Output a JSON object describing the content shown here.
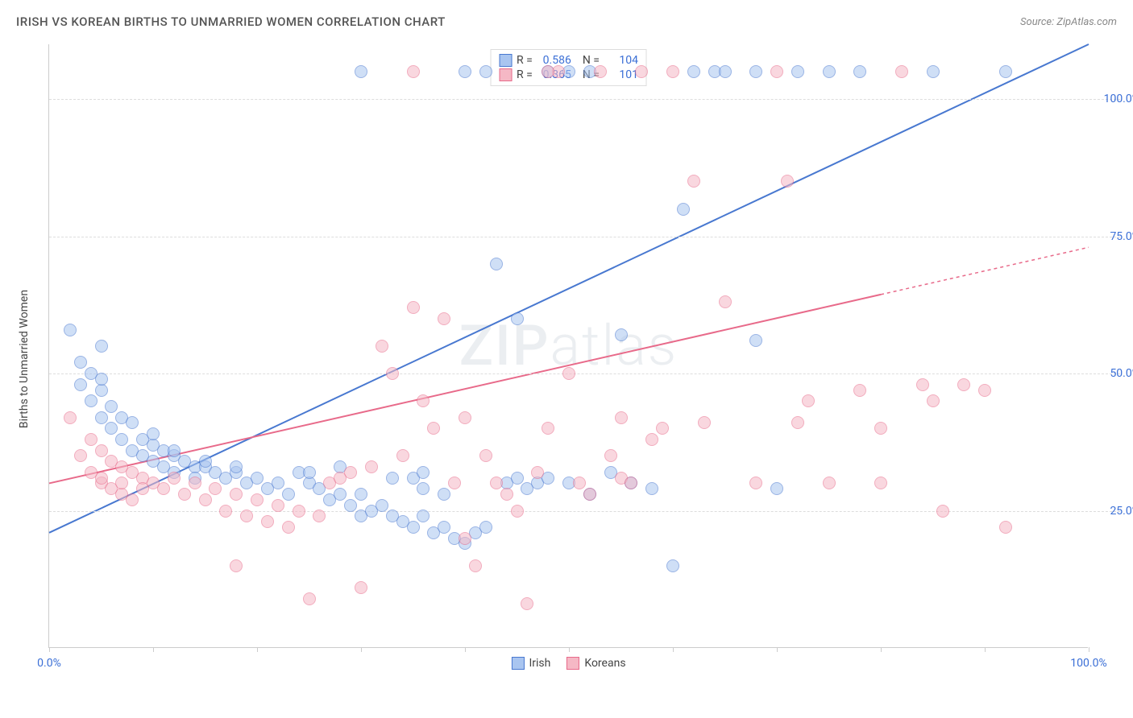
{
  "title": "IRISH VS KOREAN BIRTHS TO UNMARRIED WOMEN CORRELATION CHART",
  "source": "Source: ZipAtlas.com",
  "y_axis_label": "Births to Unmarried Women",
  "watermark": "ZIPatlas",
  "chart": {
    "type": "scatter",
    "xlim": [
      0,
      100
    ],
    "ylim": [
      0,
      110
    ],
    "x_tick_positions": [
      0,
      10,
      20,
      30,
      40,
      50,
      60,
      70,
      80,
      90,
      100
    ],
    "x_tick_labels": {
      "0": "0.0%",
      "100": "100.0%"
    },
    "y_gridlines": [
      25,
      50,
      75,
      100
    ],
    "y_tick_labels": {
      "25": "25.0%",
      "50": "50.0%",
      "75": "75.0%",
      "100": "100.0%"
    },
    "background_color": "#ffffff",
    "grid_color": "#dddddd",
    "axis_color": "#cccccc",
    "label_color": "#3b6fd6",
    "point_radius": 8,
    "point_opacity": 0.55
  },
  "series": [
    {
      "name": "Irish",
      "color_fill": "#a9c5f0",
      "color_stroke": "#4878d0",
      "R": "0.586",
      "N": "104",
      "trend": {
        "x1": 0,
        "y1": 21,
        "x2": 100,
        "y2": 110,
        "solid_until_x": 100
      },
      "points": [
        [
          2,
          58
        ],
        [
          3,
          52
        ],
        [
          3,
          48
        ],
        [
          4,
          50
        ],
        [
          4,
          45
        ],
        [
          5,
          47
        ],
        [
          5,
          42
        ],
        [
          5,
          49
        ],
        [
          6,
          44
        ],
        [
          6,
          40
        ],
        [
          7,
          42
        ],
        [
          7,
          38
        ],
        [
          8,
          41
        ],
        [
          8,
          36
        ],
        [
          9,
          38
        ],
        [
          9,
          35
        ],
        [
          10,
          37
        ],
        [
          10,
          34
        ],
        [
          11,
          36
        ],
        [
          11,
          33
        ],
        [
          12,
          35
        ],
        [
          12,
          32
        ],
        [
          13,
          34
        ],
        [
          14,
          33
        ],
        [
          14,
          31
        ],
        [
          15,
          33
        ],
        [
          16,
          32
        ],
        [
          17,
          31
        ],
        [
          18,
          32
        ],
        [
          19,
          30
        ],
        [
          20,
          31
        ],
        [
          21,
          29
        ],
        [
          22,
          30
        ],
        [
          23,
          28
        ],
        [
          24,
          32
        ],
        [
          25,
          30
        ],
        [
          26,
          29
        ],
        [
          27,
          27
        ],
        [
          28,
          28
        ],
        [
          29,
          26
        ],
        [
          30,
          28
        ],
        [
          30,
          24
        ],
        [
          31,
          25
        ],
        [
          32,
          26
        ],
        [
          33,
          24
        ],
        [
          34,
          23
        ],
        [
          35,
          22
        ],
        [
          36,
          24
        ],
        [
          37,
          21
        ],
        [
          38,
          22
        ],
        [
          39,
          20
        ],
        [
          40,
          19
        ],
        [
          41,
          21
        ],
        [
          42,
          22
        ],
        [
          43,
          70
        ],
        [
          44,
          30
        ],
        [
          45,
          31
        ],
        [
          46,
          29
        ],
        [
          47,
          30
        ],
        [
          48,
          105
        ],
        [
          50,
          105
        ],
        [
          52,
          105
        ],
        [
          54,
          32
        ],
        [
          55,
          57
        ],
        [
          56,
          30
        ],
        [
          58,
          29
        ],
        [
          60,
          15
        ],
        [
          61,
          80
        ],
        [
          62,
          105
        ],
        [
          64,
          105
        ],
        [
          65,
          105
        ],
        [
          68,
          105
        ],
        [
          70,
          29
        ],
        [
          72,
          105
        ],
        [
          75,
          105
        ],
        [
          78,
          105
        ],
        [
          85,
          105
        ],
        [
          92,
          105
        ],
        [
          40,
          105
        ],
        [
          42,
          105
        ],
        [
          68,
          56
        ],
        [
          50,
          30
        ],
        [
          52,
          28
        ],
        [
          35,
          31
        ],
        [
          36,
          32
        ],
        [
          48,
          31
        ],
        [
          10,
          39
        ],
        [
          12,
          36
        ],
        [
          15,
          34
        ],
        [
          18,
          33
        ],
        [
          25,
          32
        ],
        [
          28,
          33
        ],
        [
          33,
          31
        ],
        [
          36,
          29
        ],
        [
          38,
          28
        ],
        [
          45,
          60
        ],
        [
          5,
          55
        ],
        [
          30,
          105
        ]
      ]
    },
    {
      "name": "Koreans",
      "color_fill": "#f5b8c5",
      "color_stroke": "#e86a8a",
      "R": "0.365",
      "N": "101",
      "trend": {
        "x1": 0,
        "y1": 30,
        "x2": 100,
        "y2": 73,
        "solid_until_x": 80
      },
      "points": [
        [
          2,
          42
        ],
        [
          3,
          35
        ],
        [
          4,
          38
        ],
        [
          4,
          32
        ],
        [
          5,
          36
        ],
        [
          5,
          30
        ],
        [
          6,
          34
        ],
        [
          6,
          29
        ],
        [
          7,
          33
        ],
        [
          7,
          28
        ],
        [
          8,
          32
        ],
        [
          8,
          27
        ],
        [
          9,
          31
        ],
        [
          10,
          30
        ],
        [
          11,
          29
        ],
        [
          12,
          31
        ],
        [
          13,
          28
        ],
        [
          14,
          30
        ],
        [
          15,
          27
        ],
        [
          16,
          29
        ],
        [
          17,
          25
        ],
        [
          18,
          28
        ],
        [
          19,
          24
        ],
        [
          20,
          27
        ],
        [
          21,
          23
        ],
        [
          22,
          26
        ],
        [
          23,
          22
        ],
        [
          24,
          25
        ],
        [
          25,
          9
        ],
        [
          26,
          24
        ],
        [
          27,
          30
        ],
        [
          28,
          31
        ],
        [
          29,
          32
        ],
        [
          30,
          11
        ],
        [
          31,
          33
        ],
        [
          32,
          55
        ],
        [
          33,
          50
        ],
        [
          34,
          35
        ],
        [
          35,
          62
        ],
        [
          36,
          45
        ],
        [
          37,
          40
        ],
        [
          38,
          60
        ],
        [
          39,
          30
        ],
        [
          40,
          20
        ],
        [
          41,
          15
        ],
        [
          42,
          35
        ],
        [
          43,
          30
        ],
        [
          44,
          28
        ],
        [
          45,
          25
        ],
        [
          46,
          8
        ],
        [
          47,
          32
        ],
        [
          48,
          40
        ],
        [
          49,
          105
        ],
        [
          50,
          50
        ],
        [
          51,
          30
        ],
        [
          52,
          28
        ],
        [
          53,
          105
        ],
        [
          54,
          35
        ],
        [
          55,
          31
        ],
        [
          56,
          30
        ],
        [
          57,
          105
        ],
        [
          58,
          38
        ],
        [
          59,
          40
        ],
        [
          60,
          105
        ],
        [
          62,
          85
        ],
        [
          63,
          41
        ],
        [
          65,
          63
        ],
        [
          68,
          30
        ],
        [
          70,
          105
        ],
        [
          71,
          85
        ],
        [
          72,
          41
        ],
        [
          73,
          45
        ],
        [
          75,
          30
        ],
        [
          78,
          47
        ],
        [
          80,
          40
        ],
        [
          82,
          105
        ],
        [
          84,
          48
        ],
        [
          85,
          45
        ],
        [
          86,
          25
        ],
        [
          88,
          48
        ],
        [
          90,
          47
        ],
        [
          92,
          22
        ],
        [
          5,
          31
        ],
        [
          7,
          30
        ],
        [
          9,
          29
        ],
        [
          48,
          105
        ],
        [
          35,
          105
        ],
        [
          18,
          15
        ],
        [
          40,
          42
        ],
        [
          55,
          42
        ],
        [
          80,
          30
        ]
      ]
    }
  ],
  "legend_labels": {
    "R": "R =",
    "N": "N ="
  }
}
